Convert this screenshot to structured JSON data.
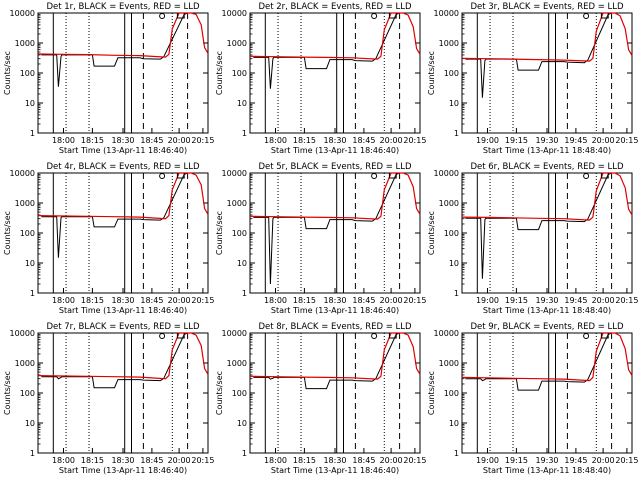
{
  "figure": {
    "background": "#ffffff",
    "event_color": "#000000",
    "lld_color": "#e00000"
  },
  "chart_data": [
    {
      "type": "line",
      "title": "Det 1r, BLACK = Events, RED = LLD",
      "xlabel": "Start Time (13-Apr-11 18:46:40)",
      "ylabel": "Counts/sec",
      "yscale": "log",
      "ylim": [
        1,
        10000
      ],
      "x_ticks": [
        "18:00",
        "18:15",
        "18:30",
        "18:45",
        "20:00",
        "20:15"
      ],
      "y_ticks": [
        "1",
        "10",
        "100",
        "1000",
        "10000"
      ],
      "series": [
        {
          "name": "BLACK = Events",
          "color": "#000000",
          "x": [
            0.02,
            0.11,
            0.12,
            0.135,
            0.14,
            0.32,
            0.33,
            0.45,
            0.47,
            0.6,
            0.62,
            0.72,
            0.74,
            0.86,
            0.88,
            0.96,
            1.0
          ],
          "y": [
            400,
            400,
            35,
            350,
            400,
            400,
            170,
            170,
            320,
            320,
            300,
            290,
            350,
            9000,
            10000,
            10000,
            10000
          ]
        },
        {
          "name": "RED = LLD",
          "color": "#e00000",
          "x": [
            0.0,
            0.15,
            0.3,
            0.45,
            0.6,
            0.75,
            0.77,
            0.79,
            0.83,
            0.86,
            0.9,
            0.93,
            0.96,
            0.98,
            1.0
          ],
          "y": [
            430,
            420,
            410,
            390,
            380,
            340,
            420,
            3000,
            10000,
            10000,
            10000,
            9000,
            4000,
            700,
            450
          ]
        }
      ]
    },
    {
      "type": "line",
      "title": "Det 2r, BLACK = Events, RED = LLD",
      "xlabel": "Start Time (13-Apr-11 18:46:40)",
      "ylabel": "Counts/sec",
      "yscale": "log",
      "ylim": [
        1,
        10000
      ],
      "x_ticks": [
        "18:00",
        "18:15",
        "18:30",
        "18:45",
        "20:00",
        "20:15"
      ],
      "y_ticks": [
        "1",
        "10",
        "100",
        "1000",
        "10000"
      ],
      "series": [
        {
          "name": "BLACK = Events",
          "color": "#000000",
          "x": [
            0.02,
            0.11,
            0.12,
            0.135,
            0.14,
            0.32,
            0.33,
            0.45,
            0.47,
            0.6,
            0.62,
            0.72,
            0.74,
            0.86,
            0.88,
            0.96,
            1.0
          ],
          "y": [
            330,
            330,
            30,
            300,
            330,
            330,
            140,
            140,
            280,
            280,
            260,
            250,
            300,
            9000,
            10000,
            10000,
            10000
          ]
        },
        {
          "name": "RED = LLD",
          "color": "#e00000",
          "x": [
            0.0,
            0.15,
            0.3,
            0.45,
            0.6,
            0.75,
            0.77,
            0.79,
            0.83,
            0.86,
            0.9,
            0.93,
            0.96,
            0.98,
            1.0
          ],
          "y": [
            360,
            350,
            340,
            330,
            320,
            290,
            360,
            2800,
            10000,
            10000,
            10000,
            8500,
            3500,
            650,
            420
          ]
        }
      ]
    },
    {
      "type": "line",
      "title": "Det 3r, BLACK = Events, RED = LLD",
      "xlabel": "Start Time (13-Apr-11 18:48:40)",
      "ylabel": "Counts/sec",
      "yscale": "log",
      "ylim": [
        1,
        10000
      ],
      "x_ticks": [
        "19:00",
        "19:15",
        "19:30",
        "19:45",
        "20:00",
        "20:15"
      ],
      "y_ticks": [
        "1",
        "10",
        "100",
        "1000",
        "10000"
      ],
      "series": [
        {
          "name": "BLACK = Events",
          "color": "#000000",
          "x": [
            0.02,
            0.11,
            0.12,
            0.135,
            0.14,
            0.32,
            0.33,
            0.45,
            0.47,
            0.6,
            0.62,
            0.72,
            0.74,
            0.86,
            0.88,
            0.96,
            1.0
          ],
          "y": [
            290,
            290,
            15,
            260,
            290,
            290,
            125,
            125,
            240,
            240,
            230,
            220,
            270,
            9000,
            10000,
            10000,
            10000
          ]
        },
        {
          "name": "RED = LLD",
          "color": "#e00000",
          "x": [
            0.0,
            0.15,
            0.3,
            0.45,
            0.6,
            0.75,
            0.77,
            0.79,
            0.83,
            0.86,
            0.9,
            0.93,
            0.96,
            0.98,
            1.0
          ],
          "y": [
            310,
            300,
            290,
            280,
            270,
            250,
            310,
            2500,
            10000,
            10000,
            10000,
            8000,
            3000,
            600,
            380
          ]
        }
      ]
    },
    {
      "type": "line",
      "title": "Det 4r, BLACK = Events, RED = LLD",
      "xlabel": "Start Time (13-Apr-11 18:46:40)",
      "ylabel": "Counts/sec",
      "yscale": "log",
      "ylim": [
        1,
        10000
      ],
      "x_ticks": [
        "18:00",
        "18:15",
        "18:30",
        "18:45",
        "20:00",
        "20:15"
      ],
      "y_ticks": [
        "1",
        "10",
        "100",
        "1000",
        "10000"
      ],
      "series": [
        {
          "name": "BLACK = Events",
          "color": "#000000",
          "x": [
            0.02,
            0.11,
            0.12,
            0.135,
            0.14,
            0.32,
            0.33,
            0.45,
            0.47,
            0.6,
            0.62,
            0.72,
            0.74,
            0.86,
            0.88,
            0.96,
            1.0
          ],
          "y": [
            350,
            350,
            15,
            320,
            350,
            350,
            160,
            160,
            290,
            290,
            280,
            270,
            320,
            9000,
            10000,
            10000,
            10000
          ]
        },
        {
          "name": "RED = LLD",
          "color": "#e00000",
          "x": [
            0.0,
            0.15,
            0.3,
            0.45,
            0.6,
            0.75,
            0.77,
            0.79,
            0.83,
            0.86,
            0.9,
            0.93,
            0.96,
            0.98,
            1.0
          ],
          "y": [
            380,
            370,
            360,
            350,
            340,
            300,
            380,
            2800,
            10000,
            10000,
            10000,
            8500,
            4000,
            650,
            420
          ]
        }
      ]
    },
    {
      "type": "line",
      "title": "Det 5r, BLACK = Events, RED = LLD",
      "xlabel": "Start Time (13-Apr-11 18:46:40)",
      "ylabel": "Counts/sec",
      "yscale": "log",
      "ylim": [
        1,
        10000
      ],
      "x_ticks": [
        "18:00",
        "18:15",
        "18:30",
        "18:45",
        "20:00",
        "20:15"
      ],
      "y_ticks": [
        "1",
        "10",
        "100",
        "1000",
        "10000"
      ],
      "series": [
        {
          "name": "BLACK = Events",
          "color": "#000000",
          "x": [
            0.02,
            0.11,
            0.12,
            0.135,
            0.14,
            0.32,
            0.33,
            0.45,
            0.47,
            0.6,
            0.62,
            0.72,
            0.74,
            0.86,
            0.88,
            0.96,
            1.0
          ],
          "y": [
            330,
            330,
            2,
            300,
            330,
            330,
            140,
            140,
            280,
            280,
            260,
            250,
            300,
            9000,
            10000,
            10000,
            10000
          ]
        },
        {
          "name": "RED = LLD",
          "color": "#e00000",
          "x": [
            0.0,
            0.15,
            0.3,
            0.45,
            0.6,
            0.75,
            0.77,
            0.79,
            0.83,
            0.86,
            0.9,
            0.93,
            0.96,
            0.98,
            1.0
          ],
          "y": [
            360,
            350,
            340,
            330,
            320,
            290,
            360,
            2800,
            10000,
            10000,
            10000,
            8500,
            3500,
            650,
            420
          ]
        }
      ]
    },
    {
      "type": "line",
      "title": "Det 6r, BLACK = Events, RED = LLD",
      "xlabel": "Start Time (13-Apr-11 18:48:40)",
      "ylabel": "Counts/sec",
      "yscale": "log",
      "ylim": [
        1,
        10000
      ],
      "x_ticks": [
        "19:00",
        "19:15",
        "19:30",
        "19:45",
        "20:00",
        "20:15"
      ],
      "y_ticks": [
        "1",
        "10",
        "100",
        "1000",
        "10000"
      ],
      "series": [
        {
          "name": "BLACK = Events",
          "color": "#000000",
          "x": [
            0.02,
            0.11,
            0.12,
            0.135,
            0.14,
            0.32,
            0.33,
            0.45,
            0.47,
            0.6,
            0.62,
            0.72,
            0.74,
            0.86,
            0.88,
            0.96,
            1.0
          ],
          "y": [
            310,
            310,
            3,
            280,
            310,
            310,
            130,
            130,
            260,
            260,
            250,
            240,
            290,
            9000,
            10000,
            10000,
            10000
          ]
        },
        {
          "name": "RED = LLD",
          "color": "#e00000",
          "x": [
            0.0,
            0.15,
            0.3,
            0.45,
            0.6,
            0.75,
            0.77,
            0.79,
            0.83,
            0.86,
            0.9,
            0.93,
            0.96,
            0.98,
            1.0
          ],
          "y": [
            340,
            330,
            320,
            310,
            300,
            270,
            340,
            2600,
            10000,
            10000,
            10000,
            8000,
            3200,
            620,
            400
          ]
        }
      ]
    },
    {
      "type": "line",
      "title": "Det 7r, BLACK = Events, RED = LLD",
      "xlabel": "Start Time (13-Apr-11 18:46:40)",
      "ylabel": "Counts/sec",
      "yscale": "log",
      "ylim": [
        1,
        10000
      ],
      "x_ticks": [
        "18:00",
        "18:15",
        "18:30",
        "18:45",
        "20:00",
        "20:15"
      ],
      "y_ticks": [
        "1",
        "10",
        "100",
        "1000",
        "10000"
      ],
      "series": [
        {
          "name": "BLACK = Events",
          "color": "#000000",
          "x": [
            0.02,
            0.11,
            0.12,
            0.135,
            0.14,
            0.32,
            0.33,
            0.45,
            0.47,
            0.6,
            0.62,
            0.72,
            0.74,
            0.86,
            0.88,
            0.96,
            1.0
          ],
          "y": [
            350,
            350,
            300,
            330,
            350,
            350,
            150,
            150,
            280,
            280,
            270,
            260,
            310,
            9000,
            10000,
            10000,
            10000
          ]
        },
        {
          "name": "RED = LLD",
          "color": "#e00000",
          "x": [
            0.0,
            0.15,
            0.3,
            0.45,
            0.6,
            0.75,
            0.77,
            0.79,
            0.83,
            0.86,
            0.9,
            0.93,
            0.96,
            0.98,
            1.0
          ],
          "y": [
            380,
            370,
            360,
            350,
            340,
            300,
            380,
            2800,
            10000,
            10000,
            10000,
            8500,
            3800,
            650,
            420
          ]
        }
      ]
    },
    {
      "type": "line",
      "title": "Det 8r, BLACK = Events, RED = LLD",
      "xlabel": "Start Time (13-Apr-11 18:46:40)",
      "ylabel": "Counts/sec",
      "yscale": "log",
      "ylim": [
        1,
        10000
      ],
      "x_ticks": [
        "18:00",
        "18:15",
        "18:30",
        "18:45",
        "20:00",
        "20:15"
      ],
      "y_ticks": [
        "1",
        "10",
        "100",
        "1000",
        "10000"
      ],
      "series": [
        {
          "name": "BLACK = Events",
          "color": "#000000",
          "x": [
            0.02,
            0.11,
            0.12,
            0.135,
            0.14,
            0.32,
            0.33,
            0.45,
            0.47,
            0.6,
            0.62,
            0.72,
            0.74,
            0.86,
            0.88,
            0.96,
            1.0
          ],
          "y": [
            330,
            330,
            290,
            310,
            330,
            330,
            140,
            140,
            270,
            270,
            260,
            250,
            300,
            9000,
            10000,
            10000,
            10000
          ]
        },
        {
          "name": "RED = LLD",
          "color": "#e00000",
          "x": [
            0.0,
            0.15,
            0.3,
            0.45,
            0.6,
            0.75,
            0.77,
            0.79,
            0.83,
            0.86,
            0.9,
            0.93,
            0.96,
            0.98,
            1.0
          ],
          "y": [
            360,
            350,
            340,
            330,
            320,
            290,
            360,
            2800,
            10000,
            10000,
            10000,
            8500,
            3500,
            650,
            420
          ]
        }
      ]
    },
    {
      "type": "line",
      "title": "Det 9r, BLACK = Events, RED = LLD",
      "xlabel": "Start Time (13-Apr-11 18:48:40)",
      "ylabel": "Counts/sec",
      "yscale": "log",
      "ylim": [
        1,
        10000
      ],
      "x_ticks": [
        "19:00",
        "19:15",
        "19:30",
        "19:45",
        "20:00",
        "20:15"
      ],
      "y_ticks": [
        "1",
        "10",
        "100",
        "1000",
        "10000"
      ],
      "series": [
        {
          "name": "BLACK = Events",
          "color": "#000000",
          "x": [
            0.02,
            0.11,
            0.12,
            0.135,
            0.14,
            0.32,
            0.33,
            0.45,
            0.47,
            0.6,
            0.62,
            0.72,
            0.74,
            0.86,
            0.88,
            0.96,
            1.0
          ],
          "y": [
            300,
            300,
            260,
            280,
            300,
            300,
            125,
            125,
            250,
            250,
            240,
            230,
            280,
            9000,
            10000,
            10000,
            10000
          ]
        },
        {
          "name": "RED = LLD",
          "color": "#e00000",
          "x": [
            0.0,
            0.15,
            0.3,
            0.45,
            0.6,
            0.75,
            0.77,
            0.79,
            0.83,
            0.86,
            0.9,
            0.93,
            0.96,
            0.98,
            1.0
          ],
          "y": [
            330,
            320,
            310,
            300,
            290,
            260,
            330,
            2500,
            10000,
            10000,
            10000,
            8000,
            3000,
            600,
            380
          ]
        }
      ]
    }
  ]
}
